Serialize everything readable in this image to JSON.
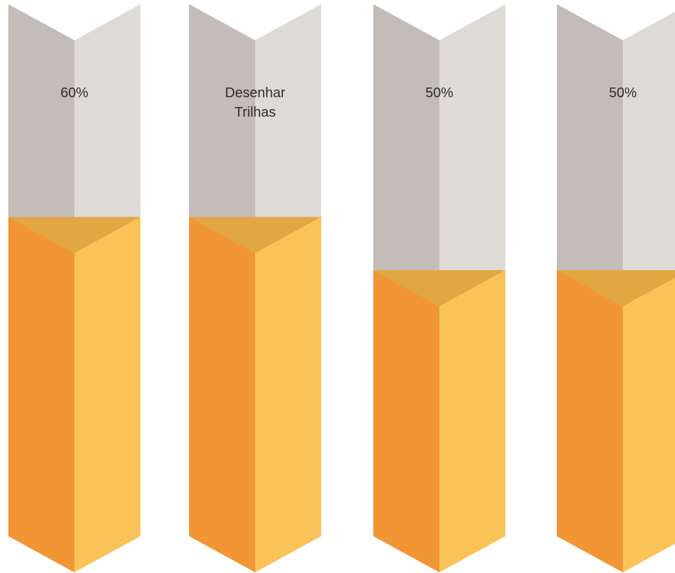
{
  "chart_data": {
    "type": "bar",
    "style": "isometric 3D prism columns",
    "ylim": [
      0,
      100
    ],
    "grid": false,
    "legend": "none",
    "bars": [
      {
        "label": "60%",
        "value": 60
      },
      {
        "label": "Desenhar Trilhas",
        "value": 60
      },
      {
        "label": "50%",
        "value": 50
      },
      {
        "label": "50%",
        "value": 50
      }
    ]
  },
  "colors": {
    "track_left": "#c3bcb9",
    "track_right": "#dedad6",
    "fill_left": "#f29535",
    "fill_right": "#fac357",
    "fill_top": "#e0a743",
    "label_text": "#2e2e2e"
  }
}
